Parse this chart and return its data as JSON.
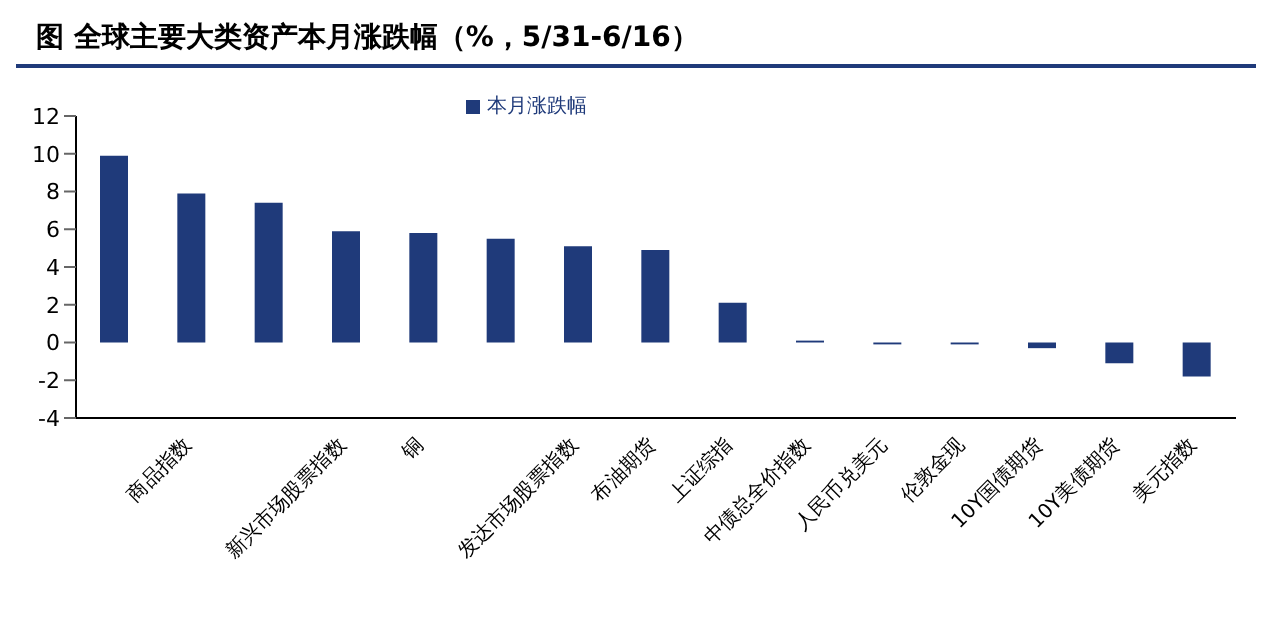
{
  "chart_data": {
    "type": "bar",
    "title": "图    全球主要大类资产本月涨跌幅（%，5/31-6/16）",
    "categories": [
      null,
      "商品指数",
      null,
      "新兴市场股票指数",
      "铜",
      null,
      "发达市场股票指数",
      "布油期货",
      "上证综指",
      "中债总全价指数",
      "人民币兑美元",
      "伦敦金现",
      "10Y国债期货",
      "10Y美债期货",
      "美元指数"
    ],
    "series": [
      {
        "name": "本月涨跌幅",
        "color": "#1f3a7a",
        "values": [
          9.9,
          7.9,
          7.4,
          5.9,
          5.8,
          5.5,
          5.1,
          4.9,
          2.1,
          0.1,
          -0.1,
          -0.1,
          -0.3,
          -1.1,
          -1.8
        ]
      }
    ],
    "ylim": [
      -4,
      12
    ],
    "yticks": [
      -4,
      -2,
      0,
      2,
      4,
      6,
      8,
      10,
      12
    ],
    "grid": false,
    "legend": "top"
  }
}
